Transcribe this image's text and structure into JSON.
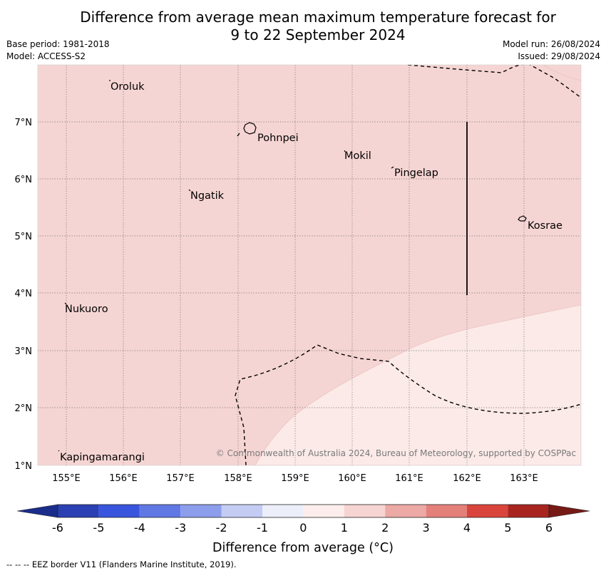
{
  "title": {
    "line1": "Difference from average mean maximum temperature forecast for",
    "line2": "9 to 22 September 2024"
  },
  "meta": {
    "base_period": "Base period: 1981-2018",
    "model": "Model: ACCESS-S2",
    "model_run": "Model run: 26/08/2024",
    "issued": "Issued: 29/08/2024"
  },
  "map": {
    "lon_ticks": [
      "155°E",
      "156°E",
      "157°E",
      "158°E",
      "159°E",
      "160°E",
      "161°E",
      "162°E",
      "163°E"
    ],
    "lat_ticks": [
      "7°N",
      "6°N",
      "5°N",
      "4°N",
      "3°N",
      "2°N",
      "1°N"
    ],
    "places": [
      {
        "name": "Oroluk",
        "lon": 155.75,
        "lat": 7.7
      },
      {
        "name": "Pohnpei",
        "lon": 158.2,
        "lat": 6.85
      },
      {
        "name": "Mokil",
        "lon": 159.85,
        "lat": 6.5
      },
      {
        "name": "Pingelap",
        "lon": 160.7,
        "lat": 6.2
      },
      {
        "name": "Ngatik",
        "lon": 157.15,
        "lat": 5.8
      },
      {
        "name": "Kosrae",
        "lon": 163.0,
        "lat": 5.3
      },
      {
        "name": "Nukuoro",
        "lon": 154.95,
        "lat": 3.85
      },
      {
        "name": "Kapingamarangi",
        "lon": 154.8,
        "lat": 1.07
      }
    ],
    "shading": {
      "main_class": "1 to 2",
      "main_color": "#f5d5d3",
      "lower_class": "0 to 1",
      "lower_color": "#fbeae8"
    },
    "copyright": "© Commonwealth of Australia 2024, Bureau of Meteorology, supported by COSPPac"
  },
  "colorbar": {
    "label": "Difference from average (°C)",
    "ticks": [
      "-6",
      "-5",
      "-4",
      "-3",
      "-2",
      "-1",
      "0",
      "1",
      "2",
      "3",
      "4",
      "5",
      "6"
    ],
    "colors": [
      "#1a2d8a",
      "#2a40b3",
      "#3955dd",
      "#6078e4",
      "#8b9deb",
      "#c4ccf4",
      "#eceef9",
      "#fdeeed",
      "#f6d4d2",
      "#eca9a5",
      "#e4807a",
      "#d9453c",
      "#a8251f",
      "#761a16"
    ]
  },
  "footer": {
    "eez_note": "--  --  -- EEZ border V11 (Flanders Marine Institute, 2019)."
  }
}
